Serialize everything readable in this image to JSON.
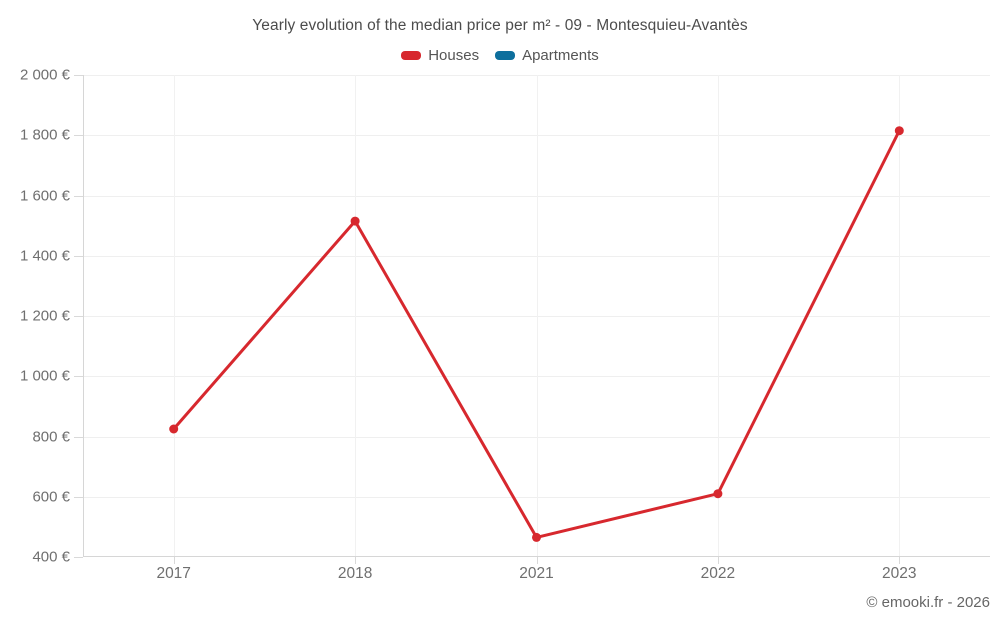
{
  "title": "Yearly evolution of the median price per m² - 09 - Montesquieu-Avantès",
  "legend": [
    {
      "label": "Houses",
      "color": "#d7282e"
    },
    {
      "label": "Apartments",
      "color": "#0e6f9d"
    }
  ],
  "footer": "© emooki.fr - 2026",
  "chart_data": {
    "type": "line",
    "categories": [
      "2017",
      "2018",
      "2021",
      "2022",
      "2023"
    ],
    "series": [
      {
        "name": "Houses",
        "color": "#d7282e",
        "values": [
          825,
          1515,
          465,
          610,
          1815
        ]
      },
      {
        "name": "Apartments",
        "color": "#0e6f9d",
        "values": []
      }
    ],
    "title": "Yearly evolution of the median price per m² - 09 - Montesquieu-Avantès",
    "xlabel": "",
    "ylabel": "",
    "ylim": [
      400,
      2000
    ],
    "ytick_step": 200,
    "ytick_labels": [
      "400 €",
      "600 €",
      "800 €",
      "1 000 €",
      "1 200 €",
      "1 400 €",
      "1 600 €",
      "1 800 €",
      "2 000 €"
    ],
    "grid": true,
    "legend_position": "top"
  }
}
